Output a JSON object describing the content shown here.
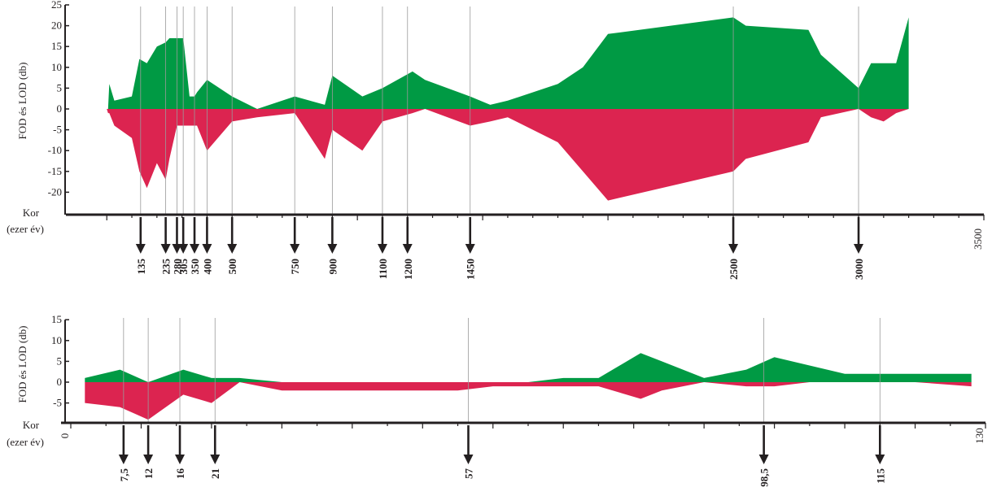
{
  "chart_data": [
    {
      "type": "area",
      "ylabel": "FOD és LOD (db)",
      "xlabel_line1": "Kor",
      "xlabel_line2": "(ezer év)",
      "xlim": [
        -30,
        3500
      ],
      "ylim": [
        -25,
        25
      ],
      "yticks": [
        25,
        20,
        15,
        10,
        5,
        0,
        -5,
        -10,
        -15,
        -20
      ],
      "x_end_label": "3500",
      "colors": {
        "positive": "#009a44",
        "negative": "#dc2450"
      },
      "series": [
        {
          "x": [
            0,
            5,
            10,
            30,
            100,
            130,
            160,
            200,
            235,
            250,
            280,
            305,
            330,
            350,
            360,
            400,
            500,
            600,
            750,
            870,
            900,
            1020,
            1100,
            1220,
            1270,
            1450,
            1530,
            1600,
            1800,
            1900,
            2000,
            2500,
            2550,
            2800,
            2850,
            3000,
            3050,
            3100,
            3150,
            3200
          ],
          "y": [
            0,
            0,
            6,
            2,
            3,
            12,
            11,
            15,
            16,
            17,
            17,
            17,
            3,
            3,
            4,
            7,
            3,
            0,
            3,
            1,
            8,
            3,
            5,
            9,
            7,
            3,
            1,
            2,
            6,
            10,
            18,
            22,
            20,
            19,
            13,
            5,
            11,
            11,
            11,
            22
          ]
        },
        {
          "x": [
            0,
            5,
            10,
            30,
            100,
            130,
            160,
            200,
            235,
            250,
            280,
            305,
            330,
            350,
            360,
            400,
            500,
            600,
            750,
            870,
            900,
            1020,
            1100,
            1220,
            1270,
            1450,
            1530,
            1600,
            1800,
            1900,
            2000,
            2500,
            2550,
            2800,
            2850,
            3000,
            3050,
            3100,
            3150,
            3200
          ],
          "y": [
            0,
            -1,
            -1,
            -4,
            -7,
            -15,
            -19,
            -13,
            -17,
            -12,
            -4,
            -4,
            -4,
            -4,
            -4,
            -10,
            -3,
            -2,
            -1,
            -12,
            -5,
            -10,
            -3,
            -1,
            0,
            -4,
            -3,
            -2,
            -8,
            -15,
            -22,
            -15,
            -12,
            -8,
            -2,
            0,
            -2,
            -3,
            -1,
            0
          ]
        }
      ],
      "markers": [
        {
          "x": 135,
          "label": "135"
        },
        {
          "x": 235,
          "label": "235"
        },
        {
          "x": 280,
          "label": "280"
        },
        {
          "x": 305,
          "label": "305"
        },
        {
          "x": 350,
          "label": "350"
        },
        {
          "x": 400,
          "label": "400"
        },
        {
          "x": 500,
          "label": "500"
        },
        {
          "x": 750,
          "label": "750"
        },
        {
          "x": 900,
          "label": "900"
        },
        {
          "x": 1100,
          "label": "1100"
        },
        {
          "x": 1200,
          "label": "1200"
        },
        {
          "x": 1450,
          "label": "1450"
        },
        {
          "x": 2500,
          "label": "2500"
        },
        {
          "x": 3000,
          "label": "3000"
        }
      ]
    },
    {
      "type": "area",
      "ylabel": "FOD és LOD (db)",
      "xlabel_line1": "Kor",
      "xlabel_line2": "(ezer év)",
      "xlim": [
        0,
        130
      ],
      "ylim": [
        -10,
        15
      ],
      "yticks": [
        15,
        10,
        5,
        0,
        -5
      ],
      "x_start_label": "0",
      "x_end_label": "130",
      "colors": {
        "positive": "#009a44",
        "negative": "#dc2450"
      },
      "series": [
        {
          "x": [
            2,
            7,
            11,
            16,
            20,
            24,
            30,
            35,
            40,
            45,
            50,
            55,
            60,
            65,
            70,
            75,
            81,
            84,
            90,
            96,
            100,
            105,
            110,
            115,
            120,
            128
          ],
          "y": [
            1,
            3,
            0,
            3,
            1,
            1,
            0,
            0,
            0,
            0,
            0,
            0,
            0,
            0,
            1,
            1,
            7,
            5,
            1,
            3,
            6,
            4,
            2,
            2,
            2,
            2
          ]
        },
        {
          "x": [
            2,
            7,
            11,
            16,
            20,
            24,
            30,
            35,
            40,
            45,
            50,
            55,
            60,
            65,
            70,
            75,
            81,
            84,
            90,
            96,
            100,
            105,
            110,
            115,
            120,
            128
          ],
          "y": [
            -5,
            -6,
            -9,
            -3,
            -5,
            0,
            -2,
            -2,
            -2,
            -2,
            -2,
            -2,
            -1,
            -1,
            -1,
            -1,
            -4,
            -2,
            0,
            -1,
            -1,
            0,
            0,
            0,
            0,
            -1
          ]
        }
      ],
      "markers": [
        {
          "x": 7.5,
          "label": "7,5"
        },
        {
          "x": 11,
          "label": "12"
        },
        {
          "x": 15.5,
          "label": "16"
        },
        {
          "x": 20.5,
          "label": "21"
        },
        {
          "x": 56.5,
          "label": "57"
        },
        {
          "x": 98.5,
          "label": "98,5"
        },
        {
          "x": 115,
          "label": "115"
        }
      ]
    }
  ]
}
